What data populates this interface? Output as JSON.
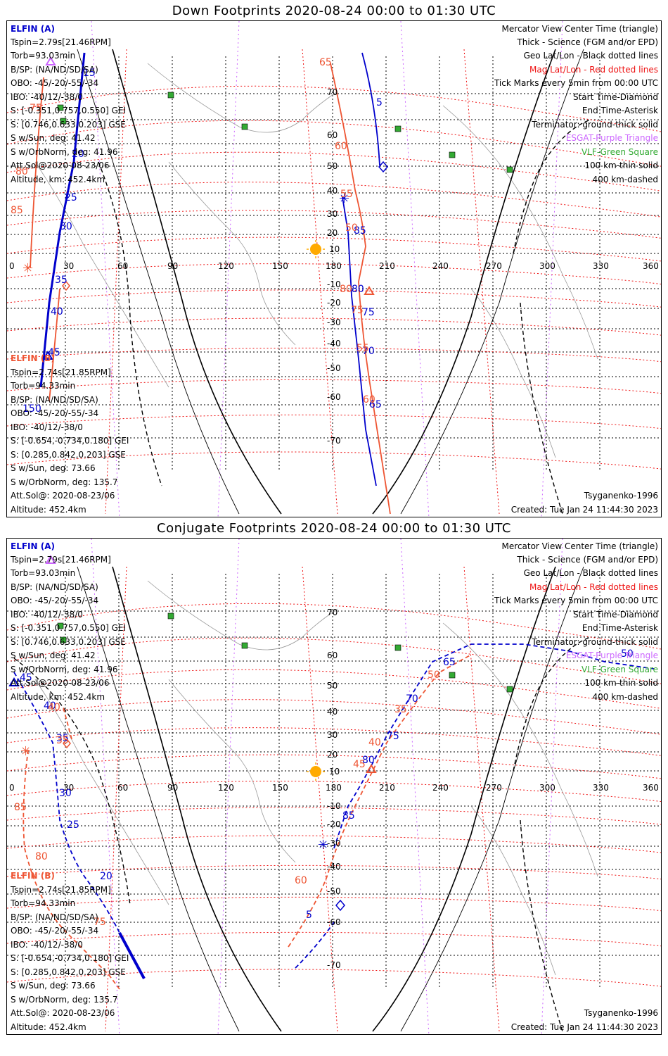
{
  "panels": [
    {
      "id": "down",
      "title": "Down Footprints 2020-08-24 00:00 to 01:30 UTC",
      "elfin_a": {
        "label": "ELFIN (A)",
        "lines": [
          "Tspin=2.79s[21.46RPM]",
          "Torb=93.03min",
          "B/SP: (NA/ND/SD/SA)",
          "OBO: -45/-20/-55/-34",
          "IBO: -40/12/-38/0",
          "S: [-0.351,0.757,0.550] GEI",
          "S: [0.746,0.633,0.203] GSE",
          "S w/Sun, deg: 41.42",
          "S w/OrbNorm, deg: 41.96",
          "Att.Sol@2020-08-23/06",
          "Altitude, km: 452.4km"
        ]
      },
      "elfin_b": {
        "label": "ELFIN (B)",
        "lines": [
          "Tspin=2.74s[21.85RPM]",
          "Torb=94.33min",
          "B/SP: (NA/ND/SD/SA)",
          "OBO: -45/-20/-55/-34",
          "IBO: -40/12/-38/0",
          "S: [-0.654,-0.734,0.180] GEI",
          "S: [0.285,0.842,0.203] GSE",
          "S w/Sun, deg: 73.66",
          "S w/OrbNorm, deg: 135.7",
          "Att.Sol@: 2020-08-23/06",
          "Altitude: 452.4km"
        ]
      }
    },
    {
      "id": "conjugate",
      "title": "Conjugate Footprints 2020-08-24 00:00 to 01:30 UTC",
      "elfin_a": {
        "label": "ELFIN (A)",
        "lines": [
          "Tspin=2.79s[21.46RPM]",
          "Torb=93.03min",
          "B/SP: (NA/ND/SD/SA)",
          "OBO: -45/-20/-55/-34",
          "IBO: -40/12/-38/0",
          "S: [-0.351,0.757,0.550] GEI",
          "S: [0.746,0.633,0.203] GSE",
          "S w/Sun, deg: 41.42",
          "S w/OrbNorm, deg: 41.96",
          "Att.Sol@2020-08-23/06",
          "Altitude, km: 452.4km"
        ]
      },
      "elfin_b": {
        "label": "ELFIN (B)",
        "lines": [
          "Tspin=2.74s[21.85RPM]",
          "Torb=94.33min",
          "B/SP: (NA/ND/SD/SA)",
          "OBO: -45/-20/-55/-34",
          "IBO: -40/12/-38/0",
          "S: [-0.654,-0.734,0.180] GEI",
          "S: [0.285,0.842,0.203] GSE",
          "S w/Sun, deg: 73.66",
          "S w/OrbNorm, deg: 135.7",
          "Att.Sol@: 2020-08-23/06",
          "Altitude: 452.4km"
        ]
      }
    }
  ],
  "legend": {
    "mercator": "Mercator View Center Time (triangle)",
    "thick": "Thick - Science (FGM and/or EPD)",
    "geo": "Geo Lat/Lon - Black dotted lines",
    "mag": "Mag Lat/Lon - Red dotted lines",
    "ticks": "Tick Marks every 5min from 00:00 UTC",
    "start": "Start Time-Diamond",
    "end": "End Time-Asterisk",
    "terminator": "Terminator: ground-thick solid",
    "asi": "ESGAT-Purple Triangle",
    "vlf": "VLF-Green Square",
    "km100": "100 km-thin solid",
    "km400": "400 km-dashed"
  },
  "footer": {
    "model": "Tsyganenko-1996",
    "created": "Created: Tue Jan 24 11:44:30 2023"
  },
  "lon_ticks": [
    "0",
    "30",
    "60",
    "90",
    "120",
    "150",
    "180",
    "210",
    "240",
    "270",
    "300",
    "330",
    "360"
  ],
  "lat_ticks": [
    "70",
    "60",
    "50",
    "40",
    "30",
    "20",
    "10",
    "-10",
    "-20",
    "-30",
    "-40",
    "-50",
    "-60",
    "-70"
  ],
  "colors": {
    "elfin_a": "#0000cc",
    "elfin_b": "#ee5533",
    "mag_grid": "#ee1111",
    "geo_grid": "#000000",
    "asi": "#cc66ff",
    "vlf": "#33aa33",
    "sun": "#ffaa00"
  },
  "track_labels": {
    "down_a": [
      "5",
      "15",
      "20",
      "25",
      "30",
      "35",
      "40",
      "45",
      "150",
      "65",
      "70",
      "75",
      "80",
      "85"
    ],
    "down_b": [
      "65",
      "60",
      "55",
      "50",
      "75",
      "80",
      "85",
      "40",
      "45",
      "55",
      "60"
    ],
    "conj_a": [
      "45",
      "40",
      "35",
      "30",
      "25",
      "20",
      "5",
      "85",
      "80",
      "75",
      "70",
      "65",
      "50"
    ],
    "conj_b": [
      "40",
      "35",
      "85",
      "80",
      "75",
      "60",
      "50",
      "35",
      "40",
      "45"
    ]
  }
}
